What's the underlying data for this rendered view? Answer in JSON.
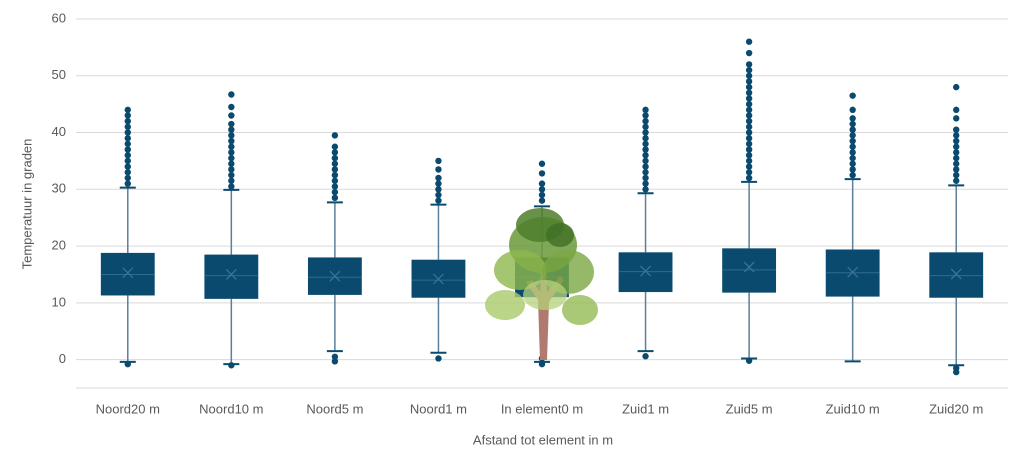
{
  "chart_data": {
    "type": "box",
    "xlabel": "Afstand tot element in m",
    "ylabel": "Temperatuur in graden",
    "color": "#0b4a6f",
    "ylim": [
      -5,
      60
    ],
    "yticks": [
      0,
      10,
      20,
      30,
      40,
      50,
      60
    ],
    "grid": true,
    "categories": [
      "Noord20 m",
      "Noord10 m",
      "Noord5 m",
      "Noord1 m",
      "In element0 m",
      "Zuid1 m",
      "Zuid5 m",
      "Zuid10 m",
      "Zuid20 m"
    ],
    "boxes": [
      {
        "whislo": -0.4,
        "q1": 11.3,
        "med": 15,
        "q3": 18.8,
        "whishi": 30.3,
        "mean": 15.3,
        "fliers": [
          -0.8,
          31,
          32,
          33,
          34,
          35,
          36,
          37,
          38,
          39,
          40,
          41,
          42,
          43,
          44
        ]
      },
      {
        "whislo": -0.8,
        "q1": 10.7,
        "med": 14.8,
        "q3": 18.5,
        "whishi": 29.9,
        "mean": 15,
        "fliers": [
          -1,
          30.5,
          31.5,
          32.5,
          33.5,
          34.5,
          35.5,
          36.5,
          37.5,
          38.5,
          39.5,
          40.5,
          41.5,
          43,
          44.5,
          46.7
        ]
      },
      {
        "whislo": 1.5,
        "q1": 11.4,
        "med": 14.5,
        "q3": 18,
        "whishi": 27.7,
        "mean": 14.7,
        "fliers": [
          -0.3,
          0.5,
          28.5,
          29.5,
          30.5,
          31.5,
          32.5,
          33.5,
          34.5,
          35.5,
          36.5,
          37.5,
          39.5
        ]
      },
      {
        "whislo": 1.2,
        "q1": 10.9,
        "med": 14,
        "q3": 17.6,
        "whishi": 27.3,
        "mean": 14.2,
        "fliers": [
          0.2,
          28,
          29,
          30,
          31,
          32,
          33.5,
          35
        ]
      },
      {
        "whislo": -0.4,
        "q1": 11,
        "med": 14.5,
        "q3": 18,
        "whishi": 27,
        "mean": 14.7,
        "fliers": [
          -0.8,
          0.2,
          28,
          29,
          30,
          31,
          32.8,
          34.5
        ]
      },
      {
        "whislo": 1.5,
        "q1": 11.9,
        "med": 15.5,
        "q3": 18.9,
        "whishi": 29.3,
        "mean": 15.6,
        "fliers": [
          0.6,
          30,
          31,
          32,
          33,
          34,
          35,
          36,
          37,
          38,
          39,
          40,
          41,
          42,
          43,
          44
        ]
      },
      {
        "whislo": 0.2,
        "q1": 11.8,
        "med": 15.8,
        "q3": 19.6,
        "whishi": 31.3,
        "mean": 16.3,
        "fliers": [
          -0.2,
          32,
          33,
          34,
          35,
          36,
          37,
          38,
          39,
          40,
          41,
          42,
          43,
          44,
          45,
          46,
          47,
          48,
          49,
          50,
          51,
          52,
          54,
          56
        ]
      },
      {
        "whislo": -0.3,
        "q1": 11.1,
        "med": 15.3,
        "q3": 19.4,
        "whishi": 31.8,
        "mean": 15.4,
        "fliers": [
          32.5,
          33.5,
          34.5,
          35.5,
          36.5,
          37.5,
          38.5,
          39.5,
          40.5,
          41.5,
          42.5,
          44,
          46.5
        ]
      },
      {
        "whislo": -1,
        "q1": 10.9,
        "med": 14.8,
        "q3": 18.9,
        "whishi": 30.7,
        "mean": 15.1,
        "fliers": [
          -1.5,
          -2.2,
          31.5,
          32.5,
          33.5,
          34.5,
          35.5,
          36.5,
          37.5,
          38.5,
          39.5,
          40.5,
          42.5,
          44,
          48
        ]
      }
    ]
  }
}
